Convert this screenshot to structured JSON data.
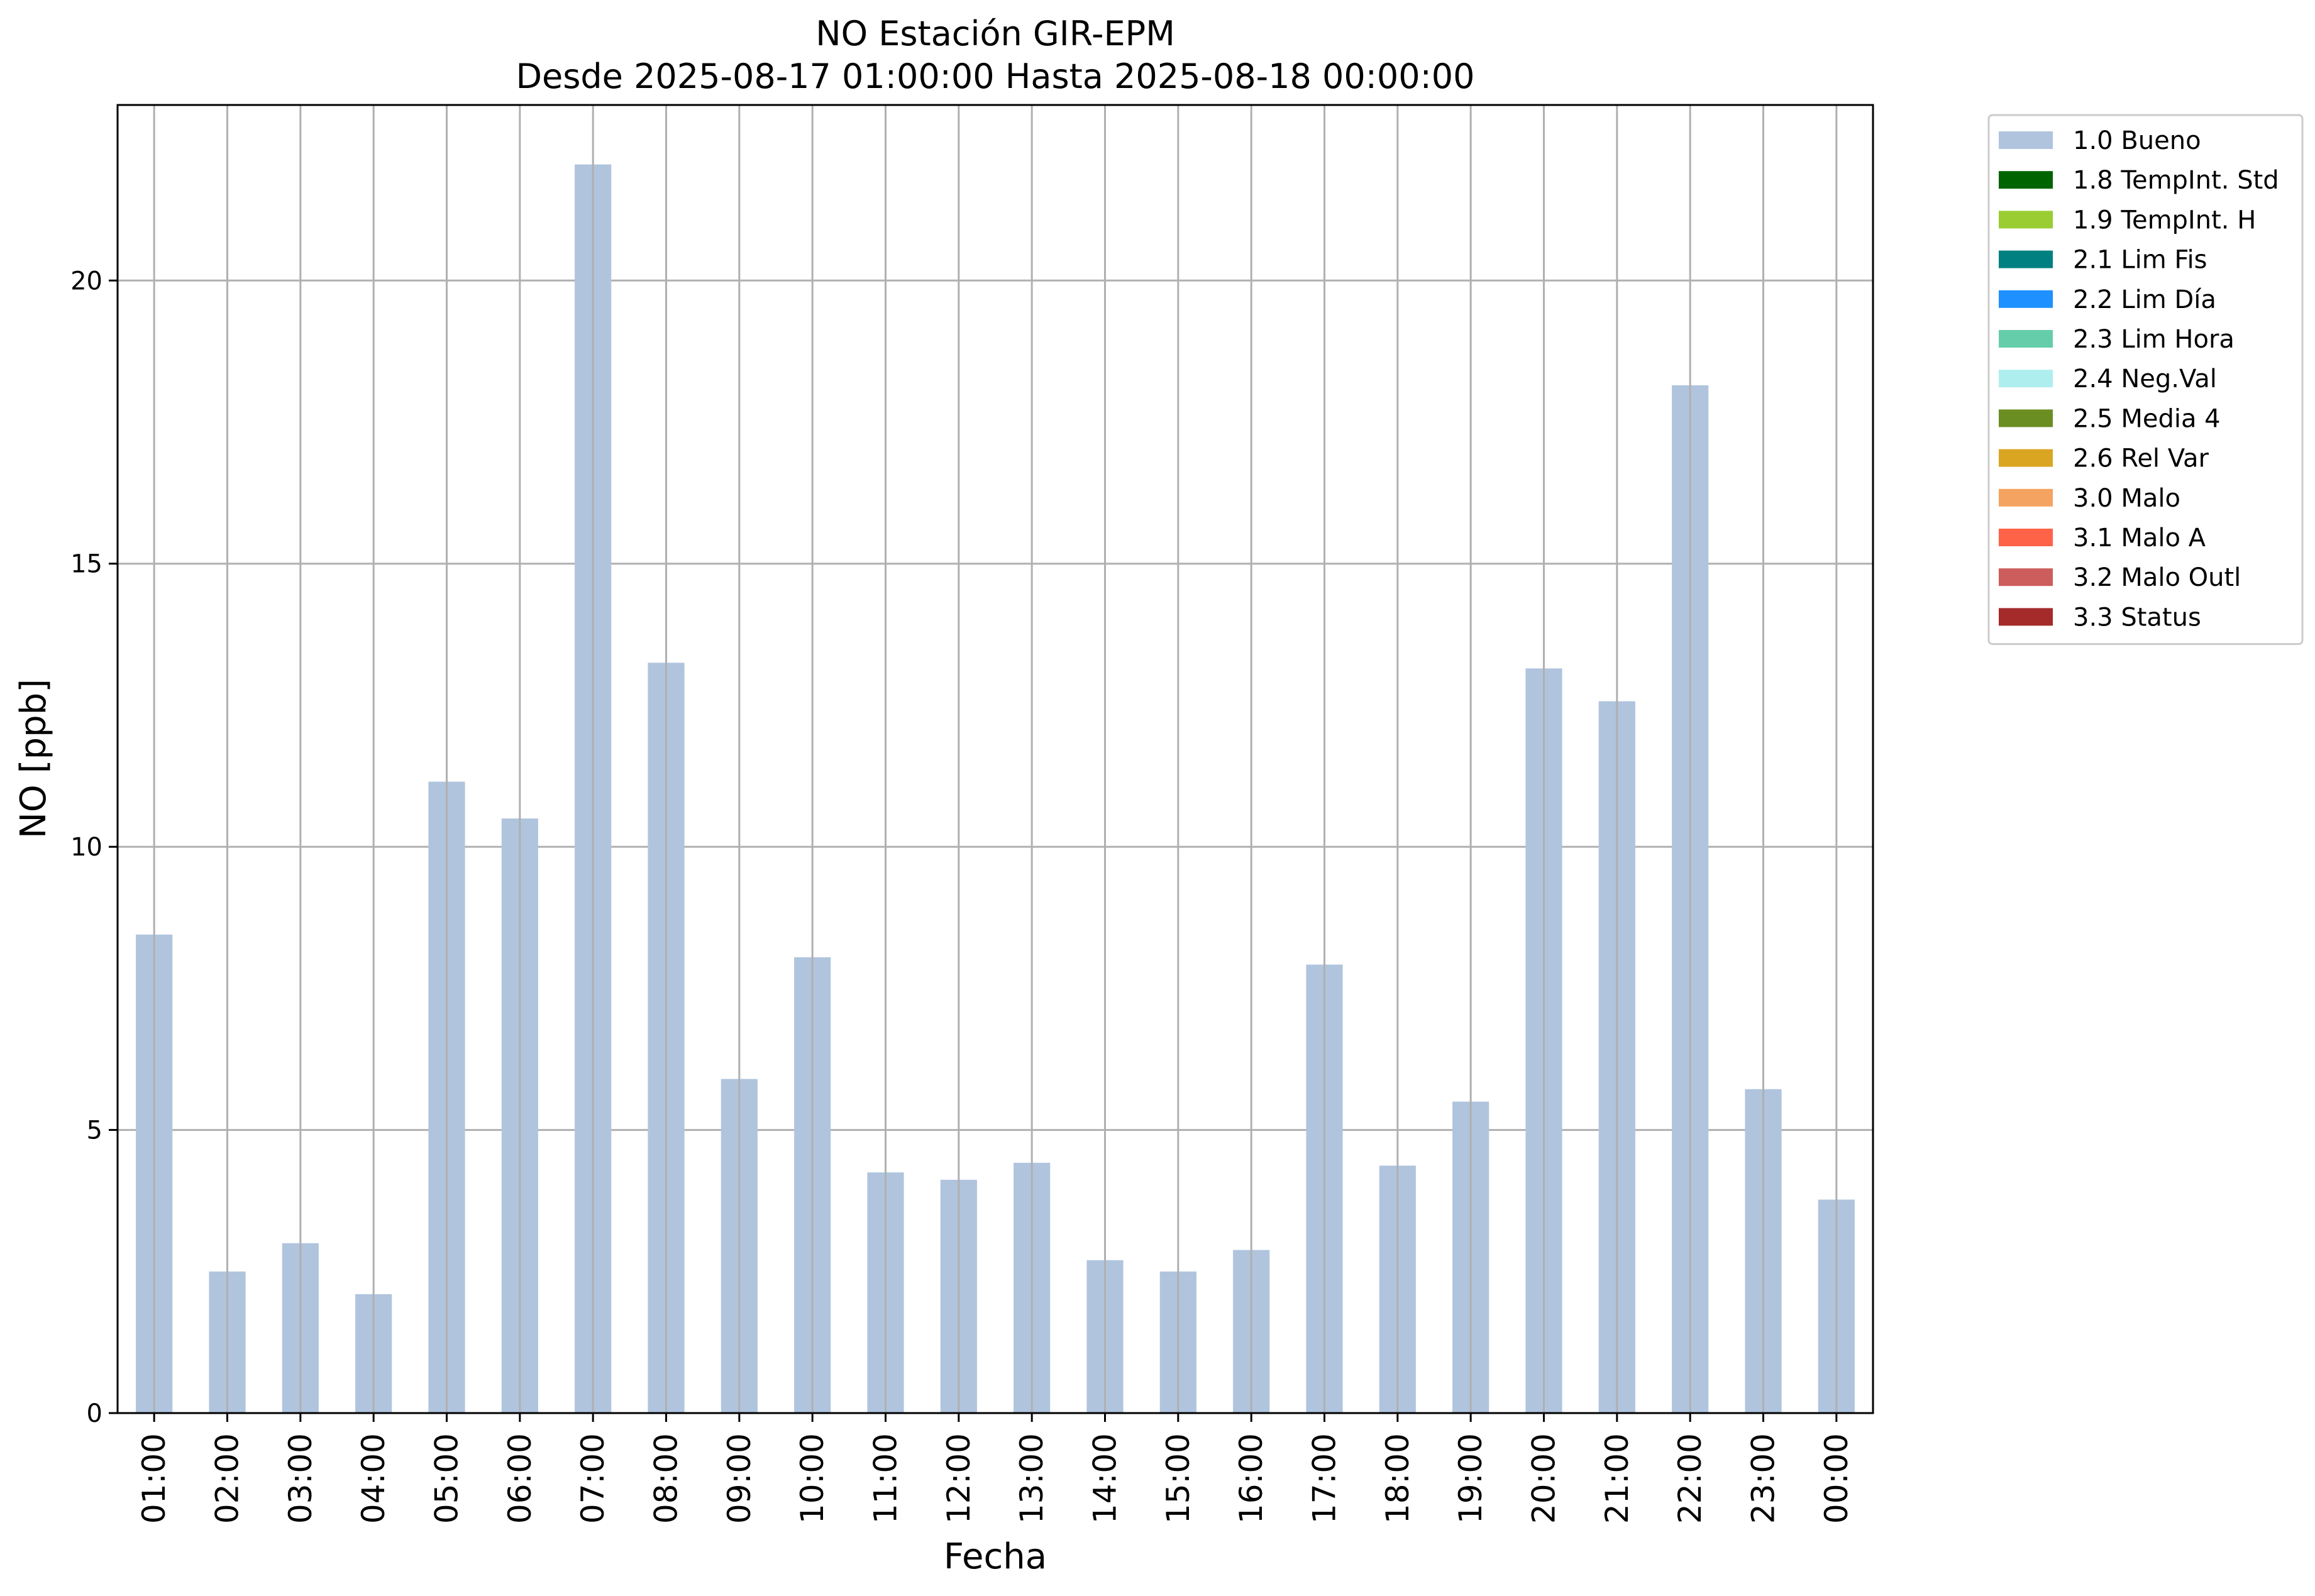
{
  "chart_data": {
    "type": "bar",
    "title": "NO Estación GIR-EPM",
    "subtitle": "Desde 2025-08-17 01:00:00 Hasta 2025-08-18 00:00:00",
    "xlabel": "Fecha",
    "ylabel": "NO [ppb]",
    "ylim": [
      0,
      23.1
    ],
    "yticks": [
      "0",
      "5",
      "10",
      "15",
      "20"
    ],
    "grid": true,
    "legend_position": "outside-top-right",
    "categories": [
      "01:00",
      "02:00",
      "03:00",
      "04:00",
      "05:00",
      "06:00",
      "07:00",
      "08:00",
      "09:00",
      "10:00",
      "11:00",
      "12:00",
      "13:00",
      "14:00",
      "15:00",
      "16:00",
      "17:00",
      "18:00",
      "19:00",
      "20:00",
      "21:00",
      "22:00",
      "23:00",
      "00:00"
    ],
    "series": [
      {
        "name": "1.0 Bueno",
        "color": "#b0c4de",
        "values": [
          8.45,
          2.5,
          3.0,
          2.1,
          11.15,
          10.5,
          22.05,
          13.25,
          5.9,
          8.05,
          4.25,
          4.12,
          4.42,
          2.7,
          2.5,
          2.88,
          7.92,
          4.37,
          5.5,
          13.15,
          12.57,
          18.15,
          5.72,
          3.77
        ]
      }
    ],
    "legend": [
      {
        "label": "1.0 Bueno",
        "color": "#b0c4de"
      },
      {
        "label": "1.8 TempInt. Std",
        "color": "#006400"
      },
      {
        "label": "1.9 TempInt. H",
        "color": "#9acd32"
      },
      {
        "label": "2.1 Lim Fis",
        "color": "#008080"
      },
      {
        "label": "2.2 Lim Día",
        "color": "#1e90ff"
      },
      {
        "label": "2.3 Lim Hora",
        "color": "#66cdaa"
      },
      {
        "label": "2.4 Neg.Val",
        "color": "#afeeee"
      },
      {
        "label": "2.5 Media 4",
        "color": "#6b8e23"
      },
      {
        "label": "2.6 Rel Var",
        "color": "#daa520"
      },
      {
        "label": "3.0 Malo",
        "color": "#f4a460"
      },
      {
        "label": "3.1 Malo A",
        "color": "#ff6347"
      },
      {
        "label": "3.2 Malo Outl",
        "color": "#cd5c5c"
      },
      {
        "label": "3.3 Status",
        "color": "#a52a2a"
      }
    ]
  }
}
